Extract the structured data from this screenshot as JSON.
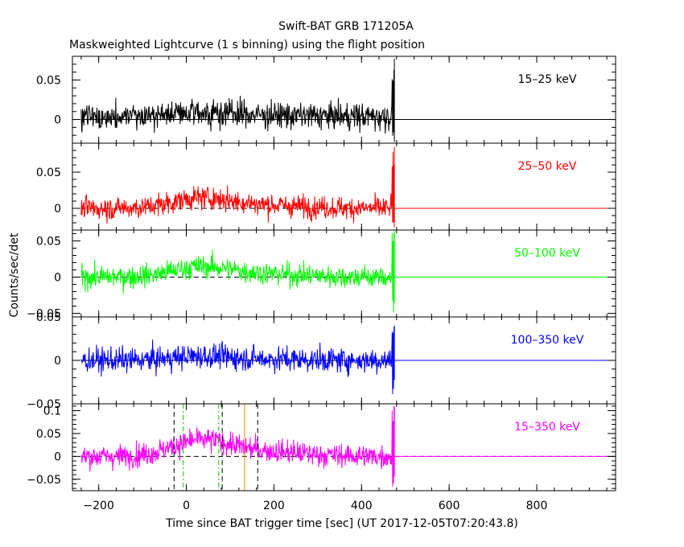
{
  "chart_data": {
    "type": "line",
    "title": "Swift-BAT GRB 171205A",
    "subtitle": "Maskweighted Lightcurve (1 s binning) using the flight position",
    "xlabel": "Time since BAT trigger time [sec] (UT 2017-12-05T07:20:43.8)",
    "ylabel": "Counts/sec/det",
    "xlim": [
      -260,
      980
    ],
    "x_ticks": [
      -200,
      0,
      200,
      400,
      600,
      800
    ],
    "x_tick_labels": [
      "−200",
      "0",
      "200",
      "400",
      "600",
      "800"
    ],
    "data_x_range": [
      -240,
      475
    ],
    "series_end_x": 975,
    "panels": [
      {
        "name": "15–25 keV",
        "color": "#000000",
        "ylim": [
          -0.03,
          0.08
        ],
        "yticks": [
          0,
          0.05
        ],
        "ytick_labels": [
          "0",
          "0.05"
        ],
        "baseline": 0.004,
        "noise": 0.012,
        "bump": 0.004,
        "spike_peak": 0.077,
        "spike_min": -0.03,
        "zero_line_dashed": false
      },
      {
        "name": "25–50 keV",
        "color": "#ff0000",
        "ylim": [
          -0.03,
          0.09
        ],
        "yticks": [
          0,
          0.05
        ],
        "ytick_labels": [
          "0",
          "0.05"
        ],
        "baseline": 0.0,
        "noise": 0.011,
        "bump": 0.012,
        "spike_peak": 0.085,
        "spike_min": -0.03,
        "zero_line_dashed": true
      },
      {
        "name": "50–100 keV",
        "color": "#00ff00",
        "ylim": [
          -0.055,
          0.065
        ],
        "yticks": [
          -0.05,
          0,
          0.05
        ],
        "ytick_labels": [
          "−0.05",
          "0",
          "0.05"
        ],
        "baseline": 0.0,
        "noise": 0.011,
        "bump": 0.012,
        "spike_peak": 0.064,
        "spike_min": -0.055,
        "zero_line_dashed": true
      },
      {
        "name": "100–350 keV",
        "color": "#0000ff",
        "ylim": [
          -0.05,
          0.05
        ],
        "yticks": [
          -0.05,
          0,
          0.05
        ],
        "ytick_labels": [
          "−0.05",
          "0",
          "0.05"
        ],
        "baseline": 0.0,
        "noise": 0.01,
        "bump": 0.004,
        "spike_peak": 0.04,
        "spike_min": -0.04,
        "zero_line_dashed": false
      },
      {
        "name": "15–350 keV",
        "color": "#ff00ff",
        "ylim": [
          -0.075,
          0.115
        ],
        "yticks": [
          -0.05,
          0,
          0.05,
          0.1
        ],
        "ytick_labels": [
          "−0.05",
          "0",
          "0.05",
          "0.1"
        ],
        "baseline": 0.0,
        "noise": 0.018,
        "bump": 0.03,
        "spike_peak": 0.11,
        "spike_min": -0.072,
        "zero_line_dashed": true
      }
    ],
    "markers": [
      {
        "x": -28,
        "color": "#000000",
        "style": "dashed"
      },
      {
        "x": -7,
        "color": "#00cc00",
        "style": "dashdot"
      },
      {
        "x": 74,
        "color": "#00cc00",
        "style": "dashdot"
      },
      {
        "x": 82,
        "color": "#000000",
        "style": "dashed"
      },
      {
        "x": 133,
        "color": "#ff8000",
        "style": "solid"
      },
      {
        "x": 163,
        "color": "#000000",
        "style": "dashed"
      }
    ],
    "grid": false,
    "legend": "none"
  }
}
